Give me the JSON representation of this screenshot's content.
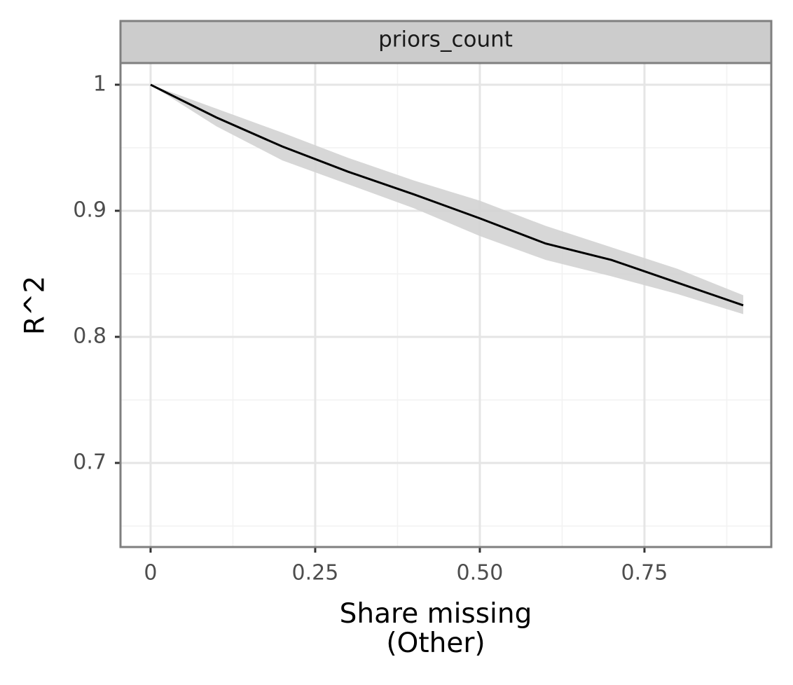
{
  "chart_data": {
    "type": "line",
    "strip_label": "priors_count",
    "xlabel": "Share missing\n(Other)",
    "ylabel": "R^2",
    "x": [
      0,
      0.1,
      0.2,
      0.3,
      0.4,
      0.5,
      0.6,
      0.7,
      0.8,
      0.9
    ],
    "series": [
      {
        "color": "#000000",
        "band_color": "#d3d3d3",
        "values": [
          1.0,
          0.974,
          0.951,
          0.931,
          0.913,
          0.894,
          0.874,
          0.861,
          0.843,
          0.825
        ],
        "lower": [
          1.0,
          0.967,
          0.94,
          0.921,
          0.902,
          0.88,
          0.861,
          0.848,
          0.834,
          0.818
        ],
        "upper": [
          1.0,
          0.981,
          0.962,
          0.942,
          0.924,
          0.908,
          0.888,
          0.871,
          0.854,
          0.833
        ]
      }
    ],
    "xlim": [
      -0.0457,
      0.9426
    ],
    "ylim": [
      0.6333,
      1.0172
    ],
    "xticks": [
      0,
      0.25,
      {
        "value": 0.5,
        "label": "0.50"
      },
      0.75
    ],
    "yticks": [
      0.7,
      0.8,
      0.9,
      1
    ],
    "x_minor_grid": [
      0.125,
      0.375,
      0.625,
      0.875
    ],
    "y_minor_grid": [
      0.65,
      0.75,
      0.85,
      0.95
    ],
    "grid": true
  }
}
